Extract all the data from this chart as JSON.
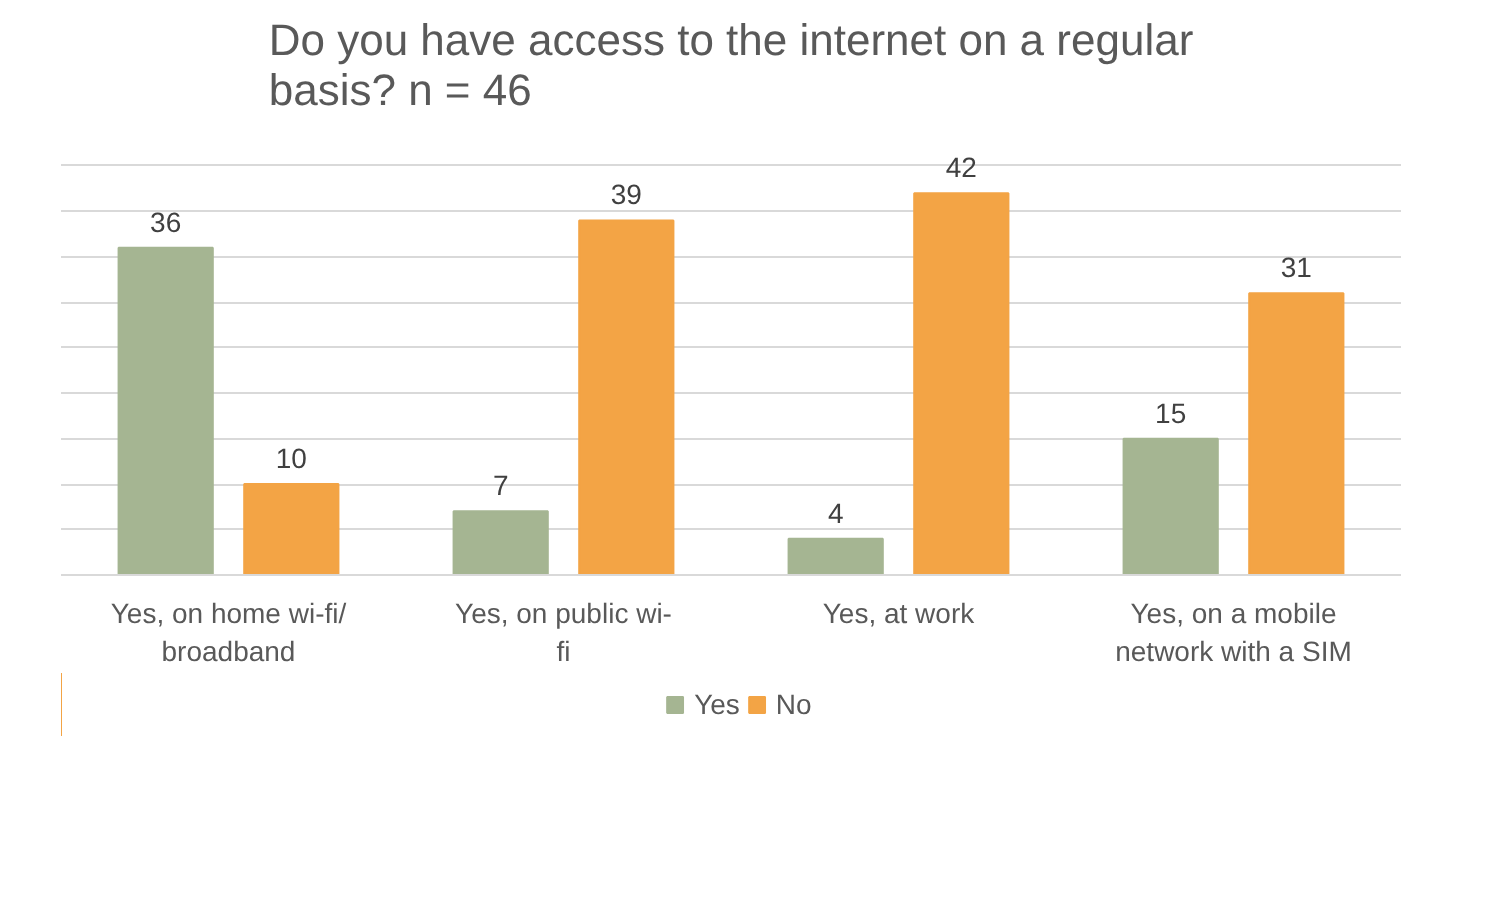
{
  "chart_data": {
    "type": "bar",
    "title": "Do you have access to the internet on a regular basis? n = 46",
    "categories": [
      "Yes, on home wi-fi/ broadband",
      "Yes, on public wi-fi",
      "Yes, at work",
      "Yes, on a mobile network with a SIM"
    ],
    "series": [
      {
        "name": "Yes",
        "color": "#a5b592",
        "values": [
          36,
          7,
          4,
          15
        ]
      },
      {
        "name": "No",
        "color": "#f3a445",
        "values": [
          10,
          39,
          42,
          31
        ]
      }
    ],
    "yticks": [
      {
        "value": 0,
        "label": null
      },
      {
        "value": 5,
        "label": null
      },
      {
        "value": 10,
        "label": null
      },
      {
        "value": 15,
        "label": null
      },
      {
        "value": 20,
        "label": null
      },
      {
        "value": 25,
        "label": null
      },
      {
        "value": 30,
        "label": null
      },
      {
        "value": 35,
        "label": null
      },
      {
        "value": 40,
        "label": null
      },
      {
        "value": 45,
        "label": null
      }
    ],
    "tick_labels": "x",
    "grid": "y",
    "legend": "bottom",
    "data_labels": true
  }
}
